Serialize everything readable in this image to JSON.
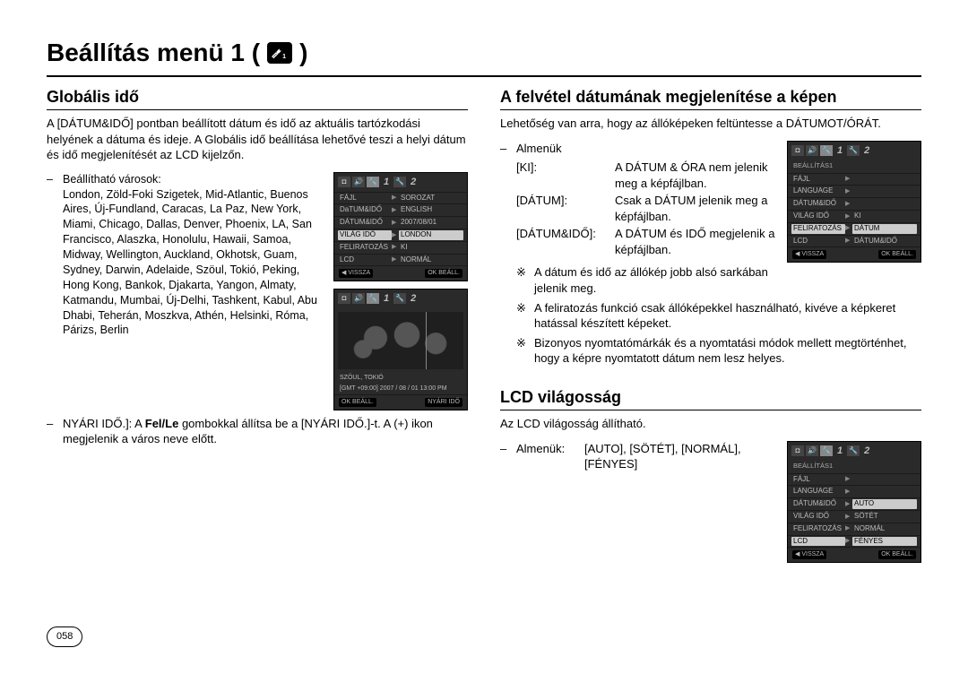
{
  "page": {
    "title": "Beállítás menü 1 (",
    "title_close": ")",
    "number": "058"
  },
  "left": {
    "section_title": "Globális idő",
    "intro": "A [DÁTUM&IDŐ] pontban beállított dátum és idő az aktuális tartózkodási helyének a dátuma és ideje. A Globális idő beállítása lehetővé teszi a helyi dátum és idő megjelenítését az LCD kijelzőn.",
    "cities_label": "Beállítható városok:",
    "cities": "London, Zöld-Foki Szigetek, Mid-Atlantic, Buenos Aires, Új-Fundland, Caracas, La Paz, New York, Miami, Chicago, Dallas, Denver, Phoenix, LA, San Francisco, Alaszka, Honolulu, Hawaii, Samoa, Midway, Wellington, Auckland, Okhotsk, Guam, Sydney, Darwin, Adelaide, Szöul, Tokió, Peking, Hong Kong, Bankok, Djakarta, Yangon, Almaty, Katmandu, Mumbai, Új-Delhi, Tashkent, Kabul, Abu Dhabi, Teherán, Moszkva, Athén, Helsinki, Róma, Párizs, Berlin",
    "dst_label": "NYÁRI IDŐ.]: A ",
    "dst_bold": "Fel/Le",
    "dst_rest": " gombokkal állítsa be a [NYÁRI IDŐ.]-t. A (+) ikon megjelenik a város neve előtt.",
    "lcd1": {
      "subhead": "",
      "rows": [
        {
          "key": "FÁJL",
          "val": "SOROZAT"
        },
        {
          "key": "DaTUM&IDŐ",
          "val": "ENGLISH"
        },
        {
          "key": "DÁTUM&IDŐ",
          "val": "2007/08/01"
        },
        {
          "key": "VILÁG IDŐ",
          "val": "LONDON",
          "hl": true
        },
        {
          "key": "FELIRATOZÁS",
          "val": "KI"
        },
        {
          "key": "LCD",
          "val": "NORMÁL"
        }
      ],
      "foot_l": "◀ VISSZA",
      "foot_r": "OK BEÁLL."
    },
    "map": {
      "caption1": "SZÖUL, TOKIÓ",
      "caption2": "[GMT +09:00] 2007 / 08 / 01  13:00 PM",
      "foot_l": "OK BEÁLL.",
      "foot_r": "NYÁRI IDŐ"
    }
  },
  "right": {
    "section1_title": "A felvétel dátumának megjelenítése a képen",
    "section1_intro": "Lehetőség van arra, hogy az állóképeken feltüntesse a DÁTUMOT/ÓRÁT.",
    "submenu_label": "Almenük",
    "defs": [
      {
        "key": "[KI]:",
        "val": "A DÁTUM & ÓRA nem jelenik meg a képfájlban."
      },
      {
        "key": "[DÁTUM]:",
        "val": "Csak a DÁTUM jelenik meg a képfájlban."
      },
      {
        "key": "[DÁTUM&IDŐ]:",
        "val": "A DÁTUM és IDŐ megjelenik a képfájlban."
      }
    ],
    "notes": [
      "A dátum és idő az állókép jobb alsó sarkában jelenik meg.",
      "A feliratozás funkció csak állóképekkel használható, kivéve a  képkeret hatással készített képeket.",
      "Bizonyos nyomtatómárkák és a nyomtatási módok mellett megtörténhet, hogy a képre nyomtatott dátum nem lesz helyes."
    ],
    "lcd_imprint": {
      "subhead": "BEÁLLÍTÁS1",
      "rows": [
        {
          "key": "FÁJL",
          "val": ""
        },
        {
          "key": "LANGUAGE",
          "val": ""
        },
        {
          "key": "DÁTUM&IDŐ",
          "val": ""
        },
        {
          "key": "VILÁG IDŐ",
          "val": "KI"
        },
        {
          "key": "FELIRATOZÁS",
          "val": "DÁTUM",
          "hl": true
        },
        {
          "key": "LCD",
          "val": "DÁTUM&IDŐ"
        }
      ],
      "foot_l": "◀ VISSZA",
      "foot_r": "OK BEÁLL."
    },
    "section2_title": "LCD világosság",
    "section2_intro": "Az LCD világosság állítható.",
    "section2_sub_label": "Almenük:",
    "section2_sub_vals": "[AUTO], [SÖTÉT], [NORMÁL], [FÉNYES]",
    "lcd_bright": {
      "subhead": "BEÁLLÍTÁS1",
      "rows": [
        {
          "key": "FÁJL",
          "val": ""
        },
        {
          "key": "LANGUAGE",
          "val": ""
        },
        {
          "key": "DÁTUM&IDŐ",
          "val": "AUTO",
          "hlval": true
        },
        {
          "key": "VILÁG IDŐ",
          "val": "SÖTÉT"
        },
        {
          "key": "FELIRATOZÁS",
          "val": "NORMÁL"
        },
        {
          "key": "LCD",
          "val": "FÉNYES",
          "hl": true
        }
      ],
      "foot_l": "◀ VISSZA",
      "foot_r": "OK BEÁLL."
    }
  }
}
